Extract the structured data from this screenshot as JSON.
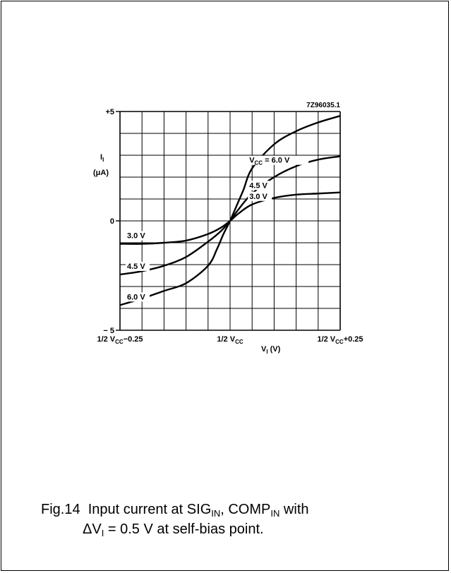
{
  "chart_data": {
    "type": "line",
    "id_code": "7Z96035.1",
    "xlabel": {
      "main": "V",
      "sub": "I",
      "unit": "(V)"
    },
    "ylabel": {
      "main": "I",
      "sub": "I",
      "unit": "(μA)"
    },
    "xlim": [
      -0.25,
      0.25
    ],
    "ylim": [
      -5,
      5
    ],
    "x_tick_labels": [
      {
        "x": -0.25,
        "pre": "1/2 V",
        "sub": "CC",
        "post": "−0.25"
      },
      {
        "x": 0,
        "pre": "1/2 V",
        "sub": "CC",
        "post": ""
      },
      {
        "x": 0.25,
        "pre": "1/2 V",
        "sub": "CC",
        "post": "+0.25"
      }
    ],
    "y_tick_labels": [
      {
        "y": 5,
        "text": "+5"
      },
      {
        "y": 0,
        "text": "0"
      },
      {
        "y": -5,
        "text": "− 5"
      }
    ],
    "grid": true,
    "x_divisions": 10,
    "y_divisions": 10,
    "series": [
      {
        "name": "V_CC = 6.0 V",
        "x": [
          -0.25,
          -0.2,
          -0.15,
          -0.1,
          -0.05,
          -0.03,
          -0.015,
          0,
          0.015,
          0.03,
          0.05,
          0.1,
          0.15,
          0.2,
          0.25
        ],
        "y": [
          -3.85,
          -3.55,
          -3.2,
          -2.85,
          -2.05,
          -1.3,
          -0.6,
          0,
          0.7,
          1.4,
          2.4,
          3.5,
          4.1,
          4.5,
          4.8
        ]
      },
      {
        "name": "4.5 V",
        "x": [
          -0.25,
          -0.2,
          -0.15,
          -0.1,
          -0.05,
          -0.02,
          0,
          0.02,
          0.05,
          0.1,
          0.15,
          0.2,
          0.25
        ],
        "y": [
          -2.45,
          -2.3,
          -2.05,
          -1.65,
          -0.95,
          -0.45,
          0,
          0.55,
          1.25,
          2.0,
          2.5,
          2.8,
          2.95
        ]
      },
      {
        "name": "3.0 V",
        "x": [
          -0.25,
          -0.2,
          -0.15,
          -0.1,
          -0.05,
          -0.02,
          0,
          0.02,
          0.05,
          0.1,
          0.15,
          0.2,
          0.25
        ],
        "y": [
          -1.05,
          -1.05,
          -1.0,
          -0.9,
          -0.6,
          -0.3,
          0,
          0.35,
          0.75,
          1.05,
          1.2,
          1.25,
          1.3
        ]
      }
    ],
    "curve_labels": [
      {
        "series": 0,
        "main": "V",
        "sub": "CC",
        "post": " = 6.0 V",
        "side": "right"
      },
      {
        "series": 1,
        "text": "4.5 V",
        "side": "right"
      },
      {
        "series": 2,
        "text": "3.0 V",
        "side": "right"
      },
      {
        "series": 2,
        "text": "3.0 V",
        "side": "left"
      },
      {
        "series": 1,
        "text": "4.5 V",
        "side": "left"
      },
      {
        "series": 0,
        "text": "6.0 V",
        "side": "left"
      }
    ]
  },
  "caption": {
    "fig": "Fig.14",
    "text1": "Input current at SIG",
    "sub1": "IN",
    "text2": ", COMP",
    "sub2": "IN",
    "text3": " with",
    "line2_a": "ΔV",
    "line2_sub": "I",
    "line2_b": " = 0.5 V at self-bias point."
  }
}
